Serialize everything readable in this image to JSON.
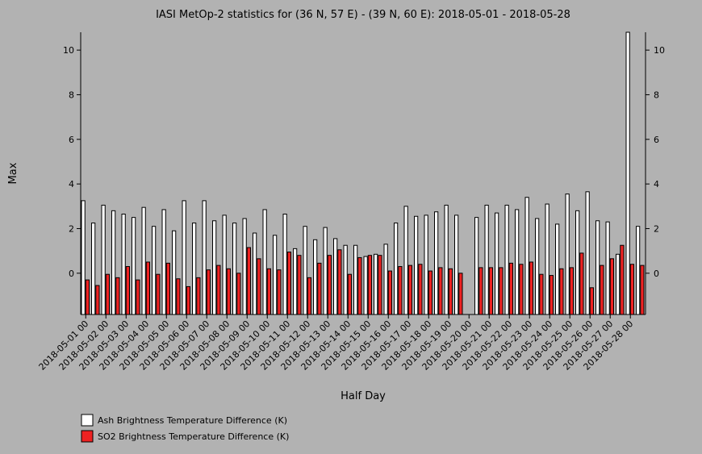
{
  "chart_data": {
    "type": "bar",
    "title": "IASI MetOp-2 statistics for (36 N, 57 E) - (39 N, 60 E): 2018-05-01 - 2018-05-28",
    "xlabel": "Half Day",
    "ylabel": "Max",
    "ylim": [
      -1.85,
      10.8
    ],
    "y_ticks": [
      0,
      2,
      4,
      6,
      8,
      10
    ],
    "grid": false,
    "legend_position": "bottom-left",
    "x_tick_labels": [
      "2018-05-01 00",
      "2018-05-02 00",
      "2018-05-03 00",
      "2018-05-04 00",
      "2018-05-05 00",
      "2018-05-06 00",
      "2018-05-07 00",
      "2018-05-08 00",
      "2018-05-09 00",
      "2018-05-10 00",
      "2018-05-11 00",
      "2018-05-12 00",
      "2018-05-13 00",
      "2018-05-14 00",
      "2018-05-15 00",
      "2018-05-16 00",
      "2018-05-17 00",
      "2018-05-18 00",
      "2018-05-19 00",
      "2018-05-20 00",
      "2018-05-21 00",
      "2018-05-22 00",
      "2018-05-23 00",
      "2018-05-24 00",
      "2018-05-25 00",
      "2018-05-26 00",
      "2018-05-27 00",
      "2018-05-28 00"
    ],
    "series": [
      {
        "name": "Ash Brightness Temperature Difference (K)",
        "color": "#ffffff",
        "values": [
          3.25,
          2.25,
          3.05,
          2.8,
          2.65,
          2.5,
          2.95,
          2.1,
          2.85,
          1.9,
          3.25,
          2.25,
          3.25,
          2.35,
          2.6,
          2.25,
          2.45,
          1.8,
          2.85,
          1.7,
          2.65,
          1.1,
          2.1,
          1.5,
          2.05,
          1.55,
          1.25,
          1.25,
          0.75,
          0.85,
          1.3,
          2.25,
          3.0,
          2.55,
          2.6,
          2.75,
          3.05,
          2.6,
          null,
          2.5,
          3.05,
          2.7,
          3.05,
          2.85,
          3.4,
          2.45,
          3.1,
          2.2,
          3.55,
          2.8,
          3.65,
          2.35,
          2.3,
          0.85,
          10.8,
          2.1
        ]
      },
      {
        "name": "SO2 Brightness Temperature Difference (K)",
        "color": "#ee2222",
        "values": [
          -0.3,
          -0.55,
          -0.05,
          -0.2,
          0.3,
          -0.3,
          0.5,
          -0.05,
          0.45,
          -0.25,
          -0.6,
          -0.2,
          0.15,
          0.35,
          0.2,
          0.0,
          1.15,
          0.65,
          0.2,
          0.15,
          0.95,
          0.8,
          -0.2,
          0.45,
          0.8,
          1.05,
          -0.05,
          0.7,
          0.8,
          0.8,
          0.1,
          0.3,
          0.35,
          0.4,
          0.1,
          0.25,
          0.2,
          0.0,
          null,
          0.25,
          0.25,
          0.25,
          0.45,
          0.4,
          0.5,
          -0.05,
          -0.1,
          0.2,
          0.25,
          0.9,
          -0.65,
          0.35,
          0.65,
          1.25,
          0.4,
          0.35
        ]
      }
    ]
  }
}
